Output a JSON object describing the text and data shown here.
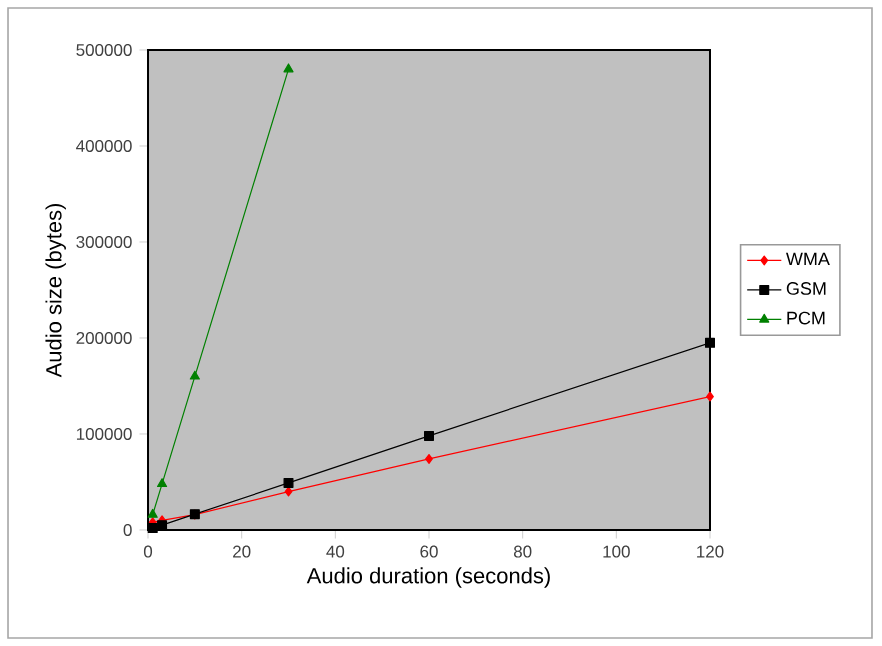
{
  "chart_data": {
    "type": "line",
    "xlabel": "Audio duration (seconds)",
    "ylabel": "Audio size (bytes)",
    "x": [
      1,
      3,
      10,
      30,
      60,
      120
    ],
    "series": [
      {
        "name": "WMA",
        "color": "#ff0000",
        "marker": "diamond",
        "values": [
          8000,
          10000,
          16000,
          40000,
          74000,
          139000
        ]
      },
      {
        "name": "GSM",
        "color": "#000000",
        "marker": "square",
        "values": [
          2000,
          5000,
          16500,
          49000,
          98000,
          195000
        ]
      },
      {
        "name": "PCM",
        "color": "#008000",
        "marker": "triangle",
        "values": [
          16000,
          48000,
          160000,
          480000,
          null,
          null
        ]
      }
    ],
    "xlim": [
      0,
      120
    ],
    "xticks": [
      0,
      20,
      40,
      60,
      80,
      100,
      120
    ],
    "ylim": [
      0,
      500000
    ],
    "yticks": [
      0,
      100000,
      200000,
      300000,
      400000,
      500000
    ],
    "legend": "right",
    "line_style": "solid"
  }
}
